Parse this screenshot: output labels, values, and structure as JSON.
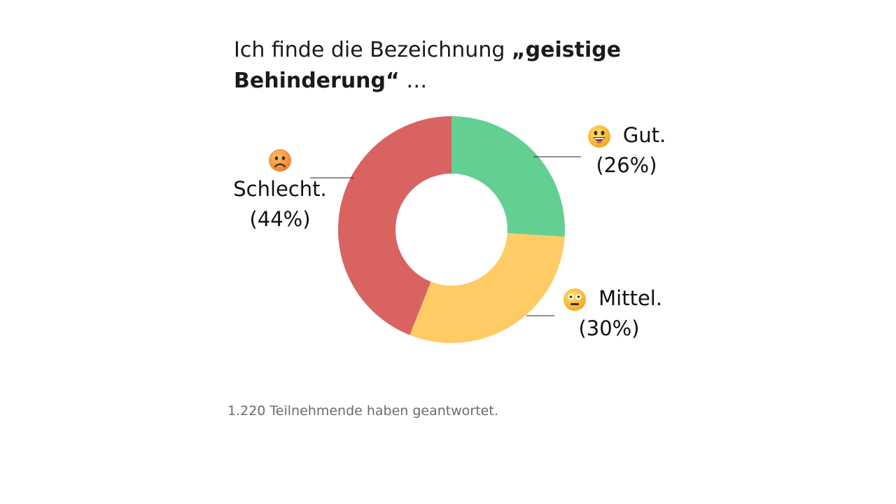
{
  "title": {
    "part1": "Ich finde die Bezeichnung ",
    "part2": "„geistige Behinderung“",
    "part3": " …"
  },
  "chart_data": {
    "type": "pie",
    "variant": "donut",
    "title": "Ich finde die Bezeichnung „geistige Behinderung“ …",
    "slices": [
      {
        "label": "Gut.",
        "value": 26,
        "pct_label": "(26%)",
        "color": "#63CF93",
        "icon": "grinning-face-icon"
      },
      {
        "label": "Mittel.",
        "value": 30,
        "pct_label": "(30%)",
        "color": "#FFCB65",
        "icon": "grimacing-face-icon"
      },
      {
        "label": "Schlecht.",
        "value": 44,
        "pct_label": "(44%)",
        "color": "#D86361",
        "icon": "frowning-face-icon"
      }
    ]
  },
  "footnote": "1.220 Teilnehmende haben geantwortet."
}
